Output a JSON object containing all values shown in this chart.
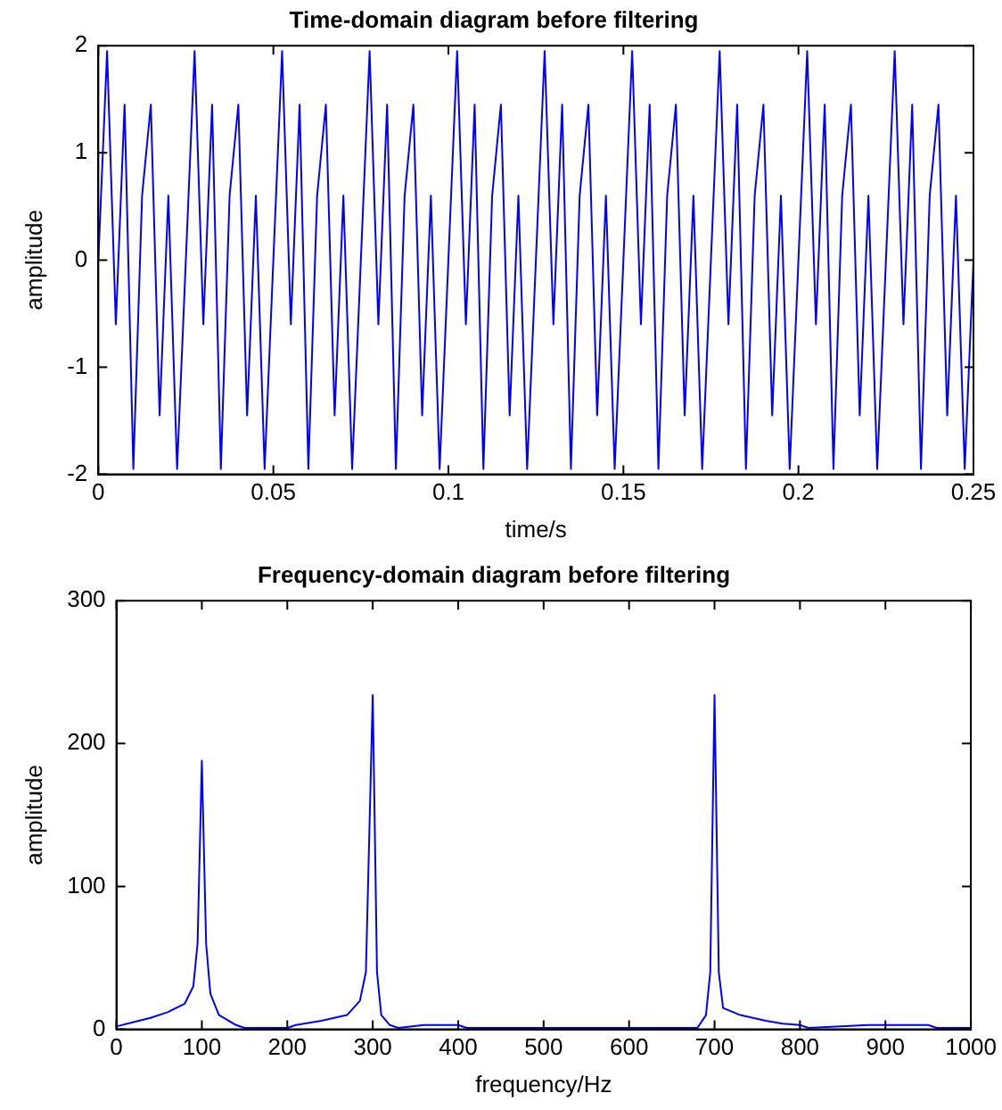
{
  "chart_data": [
    {
      "type": "line",
      "title": "Time-domain diagram before filtering",
      "xlabel": "time/s",
      "ylabel": "amplitude",
      "xlim": [
        0,
        0.25
      ],
      "xticks": [
        0,
        0.05,
        0.1,
        0.15,
        0.2,
        0.25
      ],
      "ylim": [
        -2,
        2
      ],
      "yticks": [
        -2,
        -1,
        0,
        1,
        2
      ],
      "grid": false,
      "legend": false,
      "marker": "none",
      "line_style": "solid",
      "series": [
        {
          "color": "#0000ff",
          "x": [
            0,
            0.0025,
            0.005,
            0.0075,
            0.01,
            0.0125,
            0.015,
            0.0175,
            0.02,
            0.0225,
            0.025,
            0.0275,
            0.03,
            0.0325,
            0.035,
            0.0375,
            0.04,
            0.0425,
            0.045,
            0.0475,
            0.05,
            0.0525,
            0.055,
            0.0575,
            0.06,
            0.0625,
            0.065,
            0.0675,
            0.07,
            0.0725,
            0.075,
            0.0775,
            0.08,
            0.0825,
            0.085,
            0.0875,
            0.09,
            0.0925,
            0.095,
            0.0975,
            0.1,
            0.1025,
            0.105,
            0.1075,
            0.11,
            0.1125,
            0.115,
            0.1175,
            0.12,
            0.1225,
            0.125,
            0.1275,
            0.13,
            0.1325,
            0.135,
            0.1375,
            0.14,
            0.1425,
            0.145,
            0.1475,
            0.15,
            0.1525,
            0.155,
            0.1575,
            0.16,
            0.1625,
            0.165,
            0.1675,
            0.17,
            0.1725,
            0.175,
            0.1775,
            0.18,
            0.1825,
            0.185,
            0.1875,
            0.19,
            0.1925,
            0.195,
            0.1975,
            0.2,
            0.2025,
            0.205,
            0.2075,
            0.21,
            0.2125,
            0.215,
            0.2175,
            0.22,
            0.2225,
            0.225,
            0.2275,
            0.23,
            0.2325,
            0.235,
            0.2375,
            0.24,
            0.2425,
            0.245,
            0.2475,
            0.25
          ],
          "values": [
            0,
            1.95,
            -0.6,
            1.45,
            -1.95,
            0.6,
            1.45,
            -1.45,
            0.6,
            -1.95,
            0,
            1.95,
            -0.6,
            1.45,
            -1.95,
            0.6,
            1.45,
            -1.45,
            0.6,
            -1.95,
            0,
            1.95,
            -0.6,
            1.45,
            -1.95,
            0.6,
            1.45,
            -1.45,
            0.6,
            -1.95,
            0,
            1.95,
            -0.6,
            1.45,
            -1.95,
            0.6,
            1.45,
            -1.45,
            0.6,
            -1.95,
            0,
            1.95,
            -0.6,
            1.45,
            -1.95,
            0.6,
            1.45,
            -1.45,
            0.6,
            -1.95,
            0,
            1.95,
            -0.6,
            1.45,
            -1.95,
            0.6,
            1.45,
            -1.45,
            0.6,
            -1.95,
            0,
            1.95,
            -0.6,
            1.45,
            -1.95,
            0.6,
            1.45,
            -1.45,
            0.6,
            -1.95,
            0,
            1.95,
            -0.6,
            1.45,
            -1.95,
            0.6,
            1.45,
            -1.45,
            0.6,
            -1.95,
            0,
            1.95,
            -0.6,
            1.45,
            -1.95,
            0.6,
            1.45,
            -1.45,
            0.6,
            -1.95,
            0,
            1.95,
            -0.6,
            1.45,
            -1.95,
            0.6,
            1.45,
            -1.45,
            0.6,
            -1.95,
            0
          ]
        }
      ]
    },
    {
      "type": "line",
      "title": "Frequency-domain diagram before filtering",
      "xlabel": "frequency/Hz",
      "ylabel": "amplitude",
      "xlim": [
        0,
        1000
      ],
      "xticks": [
        0,
        100,
        200,
        300,
        400,
        500,
        600,
        700,
        800,
        900,
        1000
      ],
      "ylim": [
        0,
        300
      ],
      "yticks": [
        0,
        100,
        200,
        300
      ],
      "grid": false,
      "legend": false,
      "marker": "none",
      "line_style": "solid",
      "series": [
        {
          "color": "#0000ff",
          "x": [
            0,
            20,
            40,
            60,
            80,
            90,
            95,
            100,
            105,
            110,
            120,
            140,
            150,
            200,
            210,
            240,
            270,
            285,
            292,
            300,
            305,
            310,
            320,
            330,
            360,
            400,
            410,
            600,
            680,
            690,
            695,
            700,
            705,
            710,
            730,
            760,
            780,
            800,
            810,
            880,
            950,
            960,
            1000
          ],
          "values": [
            2,
            5,
            8,
            12,
            18,
            30,
            60,
            188,
            60,
            25,
            10,
            3,
            1,
            1,
            3,
            6,
            10,
            20,
            40,
            234,
            40,
            10,
            3,
            1,
            3,
            3,
            1,
            1,
            1,
            10,
            40,
            234,
            40,
            15,
            10,
            6,
            4,
            3,
            1,
            3,
            3,
            1,
            1
          ]
        }
      ]
    }
  ]
}
